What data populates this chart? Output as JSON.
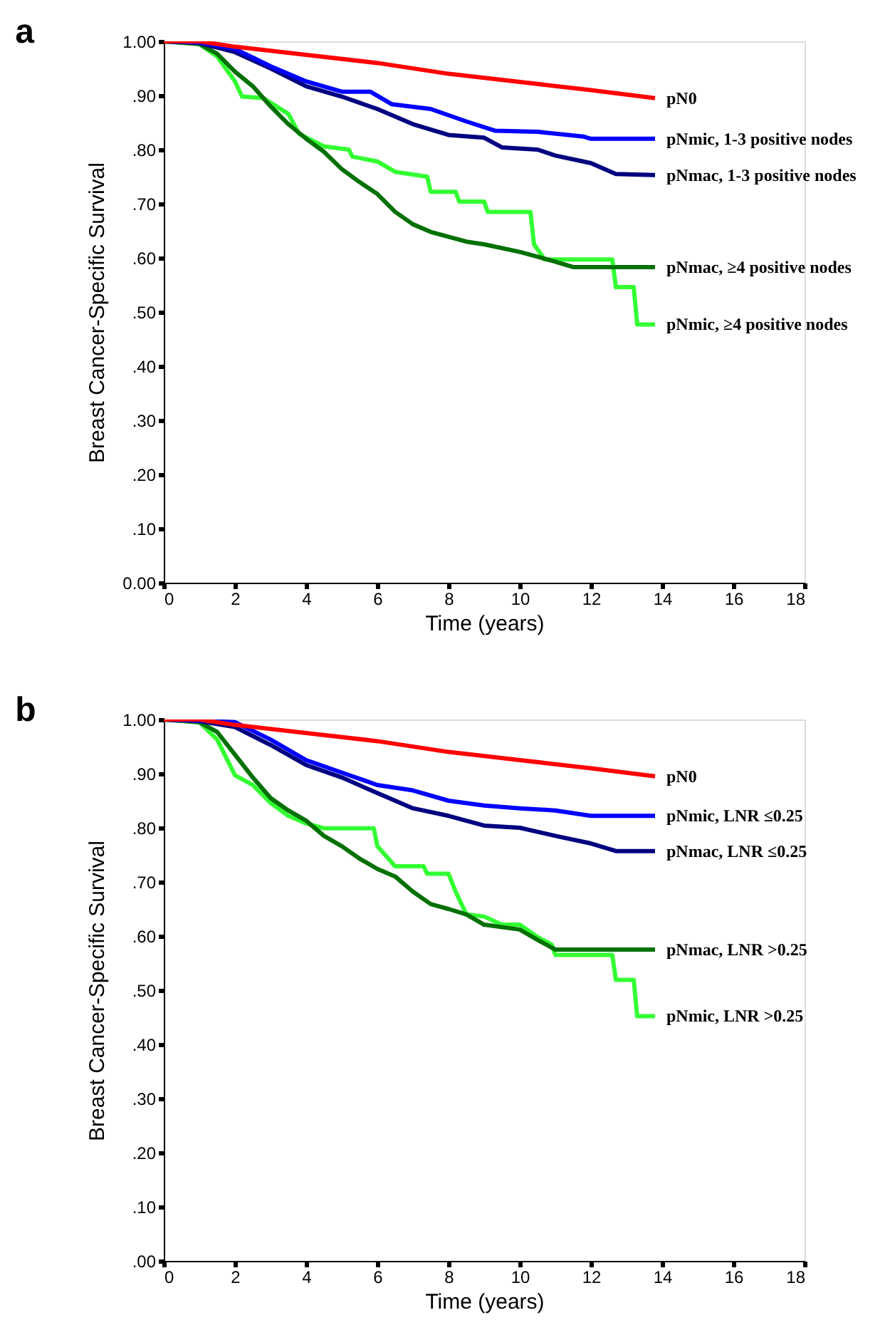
{
  "chart_data": [
    {
      "type": "line",
      "title": "a",
      "xlabel": "Time (years)",
      "ylabel": "Breast Cancer-Specific Survival",
      "xlim": [
        0,
        18
      ],
      "ylim": [
        0,
        1
      ],
      "xticks": [
        0,
        2,
        4,
        6,
        8,
        10,
        12,
        14,
        16,
        18
      ],
      "yticks": [
        {
          "value": 0,
          "label": "0.00"
        },
        {
          "value": 0.1,
          "label": ".10"
        },
        {
          "value": 0.2,
          "label": ".20"
        },
        {
          "value": 0.3,
          "label": ".30"
        },
        {
          "value": 0.4,
          "label": ".40"
        },
        {
          "value": 0.5,
          "label": ".50"
        },
        {
          "value": 0.6,
          "label": ".60"
        },
        {
          "value": 0.7,
          "label": ".70"
        },
        {
          "value": 0.8,
          "label": ".80"
        },
        {
          "value": 0.9,
          "label": ".90"
        },
        {
          "value": 1,
          "label": "1.00"
        }
      ],
      "grid": false,
      "marker": "none",
      "line_style": "solid",
      "series": [
        {
          "name": "pN0",
          "color": "#ff0000",
          "x": [
            0,
            1,
            2,
            4,
            6,
            8,
            10,
            12,
            13.8
          ],
          "values": [
            1.0,
            1.0,
            0.99,
            0.975,
            0.96,
            0.94,
            0.925,
            0.91,
            0.895
          ]
        },
        {
          "name": "pNmic, 1-3 positive nodes",
          "color": "#0000ff",
          "x": [
            0,
            1,
            2,
            3,
            4,
            5,
            5.8,
            6.4,
            7.5,
            8.5,
            9.3,
            10.5,
            11.8,
            12,
            13.8
          ],
          "values": [
            1.0,
            0.998,
            0.986,
            0.954,
            0.926,
            0.907,
            0.907,
            0.884,
            0.875,
            0.852,
            0.835,
            0.833,
            0.824,
            0.82,
            0.82
          ]
        },
        {
          "name": "pNmac, 1-3 positive nodes",
          "color": "#000080",
          "x": [
            0,
            1,
            2,
            3,
            4,
            5,
            6,
            7,
            8,
            9,
            9.5,
            10.5,
            11,
            12,
            12.7,
            13.8
          ],
          "values": [
            1.0,
            0.997,
            0.98,
            0.95,
            0.917,
            0.898,
            0.875,
            0.847,
            0.827,
            0.822,
            0.804,
            0.8,
            0.789,
            0.775,
            0.755,
            0.753
          ]
        },
        {
          "name": "pNmac, ≥4 positive nodes",
          "color": "#007000",
          "x": [
            0,
            1,
            1.5,
            2,
            2.5,
            3,
            3.5,
            4,
            4.5,
            5,
            5.5,
            6,
            6.5,
            7,
            7.5,
            8,
            8.5,
            9,
            10,
            10.5,
            11,
            11.5,
            12,
            13.8
          ],
          "values": [
            1.0,
            0.995,
            0.977,
            0.944,
            0.917,
            0.88,
            0.847,
            0.82,
            0.796,
            0.764,
            0.74,
            0.718,
            0.685,
            0.662,
            0.648,
            0.639,
            0.63,
            0.625,
            0.611,
            0.602,
            0.593,
            0.583,
            0.583,
            0.583
          ]
        },
        {
          "name": "pNmic, ≥4 positive nodes",
          "color": "#33ff33",
          "x": [
            0,
            1,
            1.5,
            2,
            2.2,
            2.8,
            3.5,
            3.8,
            4.5,
            5.2,
            5.3,
            6,
            6.5,
            7.4,
            7.5,
            8.2,
            8.3,
            9,
            9.1,
            10.3,
            10.4,
            10.7,
            12.6,
            12.7,
            13.2,
            13.3,
            13.8
          ],
          "values": [
            1.0,
            0.995,
            0.972,
            0.926,
            0.898,
            0.895,
            0.866,
            0.829,
            0.806,
            0.8,
            0.787,
            0.778,
            0.759,
            0.75,
            0.722,
            0.722,
            0.704,
            0.704,
            0.685,
            0.685,
            0.625,
            0.597,
            0.597,
            0.546,
            0.546,
            0.477,
            0.477
          ]
        }
      ]
    },
    {
      "type": "line",
      "title": "b",
      "xlabel": "Time (years)",
      "ylabel": "Breast Cancer-Specific Survival",
      "xlim": [
        0,
        18
      ],
      "ylim": [
        0,
        1
      ],
      "xticks": [
        0,
        2,
        4,
        6,
        8,
        10,
        12,
        14,
        16,
        18
      ],
      "yticks": [
        {
          "value": 0,
          "label": ".00"
        },
        {
          "value": 0.1,
          "label": ".10"
        },
        {
          "value": 0.2,
          "label": ".20"
        },
        {
          "value": 0.3,
          "label": ".30"
        },
        {
          "value": 0.4,
          "label": ".40"
        },
        {
          "value": 0.5,
          "label": ".50"
        },
        {
          "value": 0.6,
          "label": ".60"
        },
        {
          "value": 0.7,
          "label": ".70"
        },
        {
          "value": 0.8,
          "label": ".80"
        },
        {
          "value": 0.9,
          "label": ".90"
        },
        {
          "value": 1,
          "label": "1.00"
        }
      ],
      "grid": false,
      "marker": "none",
      "line_style": "solid",
      "series": [
        {
          "name": "pN0",
          "color": "#ff0000",
          "x": [
            0,
            1,
            2,
            4,
            6,
            8,
            10,
            12,
            13.8
          ],
          "values": [
            1.0,
            1.0,
            0.99,
            0.975,
            0.96,
            0.94,
            0.925,
            0.91,
            0.895
          ]
        },
        {
          "name": "pNmic, LNR ≤0.25",
          "color": "#0000ff",
          "x": [
            0,
            1,
            2,
            3,
            4,
            5,
            6,
            7,
            8,
            9,
            10,
            11,
            12,
            13.8
          ],
          "values": [
            1.0,
            0.998,
            0.995,
            0.963,
            0.925,
            0.902,
            0.879,
            0.869,
            0.85,
            0.841,
            0.836,
            0.832,
            0.822,
            0.822
          ]
        },
        {
          "name": "pNmac, LNR ≤0.25",
          "color": "#000080",
          "x": [
            0,
            1,
            2,
            3,
            4,
            5,
            6,
            7,
            8,
            9,
            10,
            11,
            12,
            12.7,
            13.8
          ],
          "values": [
            1.0,
            0.997,
            0.986,
            0.953,
            0.916,
            0.893,
            0.864,
            0.836,
            0.822,
            0.804,
            0.8,
            0.785,
            0.771,
            0.757,
            0.757
          ]
        },
        {
          "name": "pNmac, LNR >0.25",
          "color": "#007000",
          "x": [
            0,
            1,
            1.5,
            2,
            2.5,
            3,
            3.5,
            4,
            4.5,
            5,
            5.5,
            6,
            6.5,
            7,
            7.5,
            8,
            8.5,
            9,
            10,
            10.5,
            11,
            13.8
          ],
          "values": [
            1.0,
            0.995,
            0.977,
            0.935,
            0.893,
            0.855,
            0.832,
            0.813,
            0.785,
            0.766,
            0.743,
            0.724,
            0.71,
            0.682,
            0.659,
            0.65,
            0.64,
            0.621,
            0.612,
            0.593,
            0.575,
            0.575
          ]
        },
        {
          "name": "pNmic, LNR >0.25",
          "color": "#33ff33",
          "x": [
            0,
            1,
            1.5,
            2,
            2.5,
            3,
            3.5,
            4,
            4.5,
            5.9,
            6,
            6.5,
            7.3,
            7.4,
            8,
            8.2,
            8.5,
            9,
            9.5,
            10,
            10.5,
            10.9,
            11,
            12.6,
            12.7,
            13.2,
            13.3,
            13.8
          ],
          "values": [
            1.0,
            0.995,
            0.963,
            0.897,
            0.879,
            0.846,
            0.822,
            0.808,
            0.799,
            0.799,
            0.766,
            0.729,
            0.729,
            0.715,
            0.715,
            0.682,
            0.64,
            0.636,
            0.621,
            0.621,
            0.598,
            0.584,
            0.565,
            0.565,
            0.519,
            0.519,
            0.452,
            0.452
          ]
        }
      ]
    }
  ]
}
